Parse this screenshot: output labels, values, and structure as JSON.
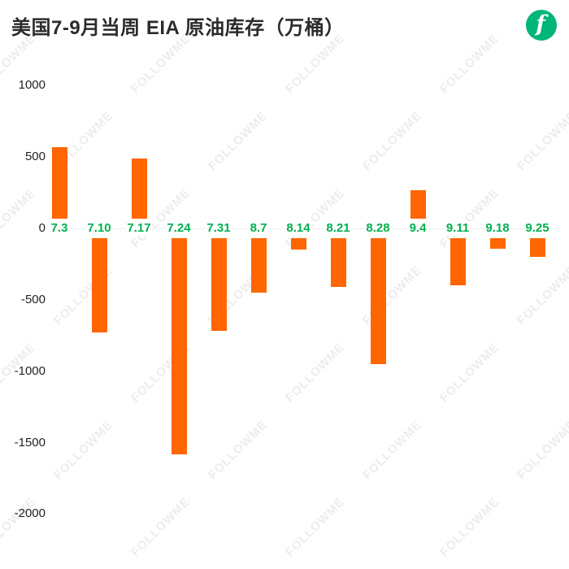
{
  "title": "美国7-9月当周 EIA 原油库存（万桶）",
  "logo": {
    "letter": "f",
    "color": "#00b578"
  },
  "watermark": {
    "text": "FOLLOWME"
  },
  "chart_data": {
    "type": "bar",
    "title": "美国7-9月当周 EIA 原油库存（万桶）",
    "categories": [
      "7.3",
      "7.10",
      "7.17",
      "7.24",
      "7.31",
      "8.7",
      "8.14",
      "8.21",
      "8.28",
      "9.4",
      "9.11",
      "9.18",
      "9.25"
    ],
    "values": [
      570,
      -730,
      490,
      -1580,
      -720,
      -450,
      -150,
      -410,
      -950,
      270,
      -400,
      -140,
      -200
    ],
    "xlabel": "",
    "ylabel": "",
    "ylim": [
      -2000,
      1000
    ],
    "yticks": [
      1000,
      500,
      0,
      -500,
      -1000,
      -1500,
      -2000
    ],
    "grid": false,
    "legend": "none",
    "bar_color": "#ff6600",
    "category_label_color": "#00b050",
    "axis_label_color": "#222222"
  }
}
